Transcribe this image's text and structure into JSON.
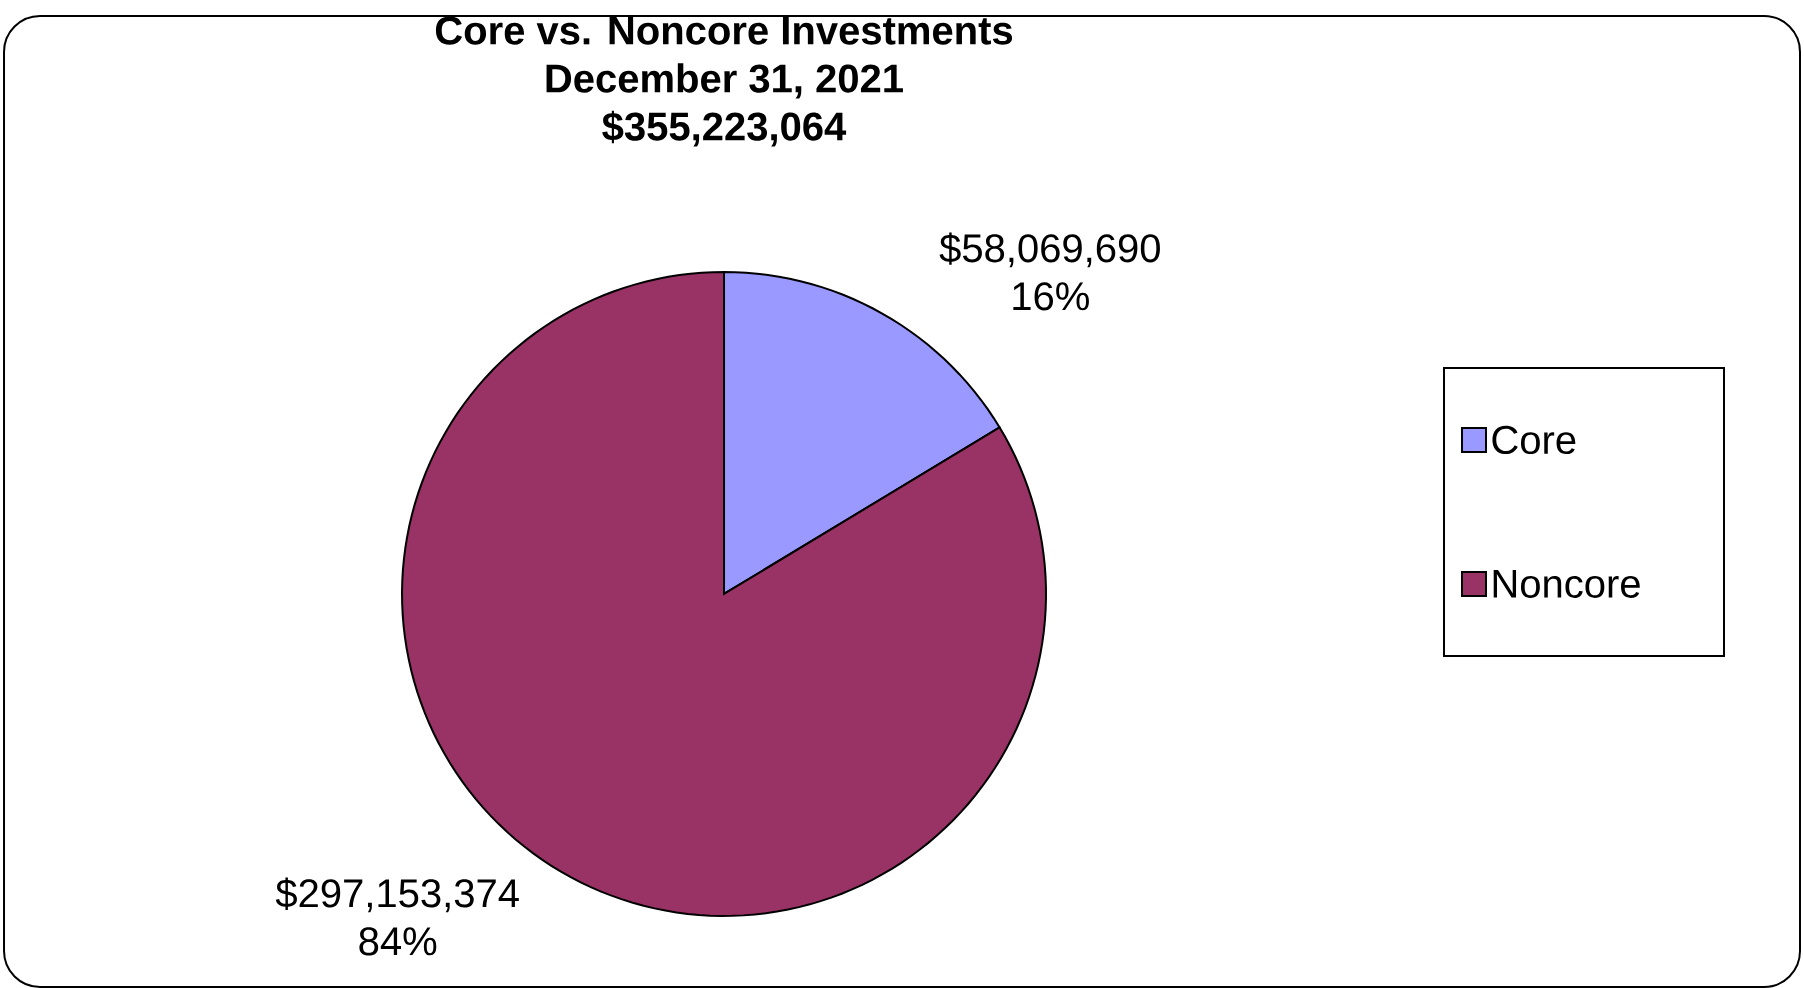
{
  "chart_data": {
    "type": "pie",
    "title": "Core vs. Noncore Investments",
    "subtitle": "December 31, 2021",
    "annotations": [
      "$355,223,064"
    ],
    "categories": [
      "Core",
      "Noncore"
    ],
    "values": [
      58069690,
      297153374
    ],
    "value_labels": [
      "$58,069,690 16%",
      "$297,153,374 84%"
    ],
    "colors": [
      "#9999ff",
      "#993366"
    ],
    "legend": "right"
  }
}
